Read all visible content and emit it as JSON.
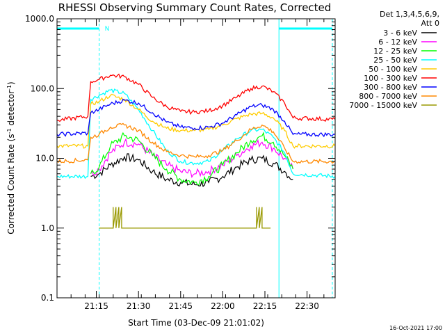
{
  "chart_data": {
    "type": "line",
    "title": "RHESSI Observing Summary Count Rates, Corrected",
    "xlabel": "Start Time (03-Dec-09 21:01:02)",
    "ylabel_main": "Corrected Count Rate (s",
    "ylabel_sup1": "-1",
    "ylabel_mid": " detector",
    "ylabel_sup2": "-1",
    "ylabel_end": ")",
    "y_scale": "log",
    "ylim": [
      0.1,
      1000
    ],
    "y_ticks": [
      {
        "value": 1000,
        "label": "1000.0"
      },
      {
        "value": 100,
        "label": "100.0"
      },
      {
        "value": 10,
        "label": "10.0"
      },
      {
        "value": 1,
        "label": "1.0"
      },
      {
        "value": 0.1,
        "label": "0.1"
      }
    ],
    "xlim": [
      "21:01",
      "22:40"
    ],
    "x_ticks": [
      "21:15",
      "21:30",
      "21:45",
      "22:00",
      "22:15",
      "22:30"
    ],
    "grid": false,
    "legend_position": "right",
    "legend_header": [
      "Det 1,3,4,5,6,9,",
      "Att 0"
    ],
    "series": [
      {
        "name": "3 - 6 keV",
        "color": "#000000",
        "values": [
          [
            "21:13",
            5.5
          ],
          [
            "21:16",
            6
          ],
          [
            "21:20",
            8
          ],
          [
            "21:25",
            10.5
          ],
          [
            "21:30",
            9.5
          ],
          [
            "21:35",
            6.5
          ],
          [
            "21:40",
            5
          ],
          [
            "21:45",
            4.5
          ],
          [
            "21:50",
            4.2
          ],
          [
            "21:55",
            4.5
          ],
          [
            "22:00",
            5.5
          ],
          [
            "22:05",
            7.5
          ],
          [
            "22:10",
            9.5
          ],
          [
            "22:14",
            10
          ],
          [
            "22:18",
            8.5
          ],
          [
            "22:22",
            6.5
          ],
          [
            "22:25",
            5
          ]
        ]
      },
      {
        "name": "6 - 12 keV",
        "color": "#ff00ff",
        "values": [
          [
            "21:13",
            6
          ],
          [
            "21:16",
            7
          ],
          [
            "21:20",
            12
          ],
          [
            "21:25",
            17
          ],
          [
            "21:30",
            16
          ],
          [
            "21:35",
            11
          ],
          [
            "21:40",
            8
          ],
          [
            "21:45",
            6.5
          ],
          [
            "21:50",
            6
          ],
          [
            "21:55",
            6.5
          ],
          [
            "22:00",
            8
          ],
          [
            "22:05",
            11
          ],
          [
            "22:10",
            15
          ],
          [
            "22:14",
            17
          ],
          [
            "22:18",
            14
          ],
          [
            "22:22",
            10
          ],
          [
            "22:25",
            7
          ]
        ]
      },
      {
        "name": "12 - 25 keV",
        "color": "#00ff00",
        "values": [
          [
            "21:13",
            6
          ],
          [
            "21:16",
            7.5
          ],
          [
            "21:20",
            15
          ],
          [
            "21:25",
            21
          ],
          [
            "21:30",
            18
          ],
          [
            "21:35",
            11
          ],
          [
            "21:40",
            7
          ],
          [
            "21:45",
            5
          ],
          [
            "21:50",
            4.5
          ],
          [
            "21:55",
            5.5
          ],
          [
            "22:00",
            8
          ],
          [
            "22:05",
            12
          ],
          [
            "22:10",
            18
          ],
          [
            "22:14",
            21
          ],
          [
            "22:18",
            17
          ],
          [
            "22:22",
            11
          ],
          [
            "22:25",
            7
          ]
        ]
      },
      {
        "name": "25 - 50 keV",
        "color": "#00ffff",
        "values": [
          [
            "21:01",
            5.5
          ],
          [
            "21:12",
            5.5
          ],
          [
            "21:13",
            70
          ],
          [
            "21:16",
            80
          ],
          [
            "21:20",
            95
          ],
          [
            "21:25",
            85
          ],
          [
            "21:30",
            50
          ],
          [
            "21:35",
            25
          ],
          [
            "21:40",
            13
          ],
          [
            "21:45",
            9
          ],
          [
            "21:50",
            8.5
          ],
          [
            "21:55",
            9
          ],
          [
            "22:00",
            13
          ],
          [
            "22:05",
            19
          ],
          [
            "22:10",
            25
          ],
          [
            "22:14",
            26
          ],
          [
            "22:18",
            20
          ],
          [
            "22:22",
            12
          ],
          [
            "22:25",
            6
          ],
          [
            "22:40",
            5.5
          ]
        ]
      },
      {
        "name": "50 - 100 keV",
        "color": "#ffcc00",
        "values": [
          [
            "21:01",
            15
          ],
          [
            "21:12",
            15
          ],
          [
            "21:13",
            60
          ],
          [
            "21:16",
            65
          ],
          [
            "21:20",
            80
          ],
          [
            "21:25",
            70
          ],
          [
            "21:30",
            50
          ],
          [
            "21:35",
            34
          ],
          [
            "21:40",
            27
          ],
          [
            "21:45",
            25
          ],
          [
            "21:50",
            25
          ],
          [
            "21:55",
            26
          ],
          [
            "22:00",
            30
          ],
          [
            "22:05",
            37
          ],
          [
            "22:10",
            43
          ],
          [
            "22:14",
            44
          ],
          [
            "22:18",
            38
          ],
          [
            "22:22",
            25
          ],
          [
            "22:25",
            15
          ],
          [
            "22:40",
            15
          ]
        ]
      },
      {
        "name": "100 - 300 keV",
        "color": "#ff0000",
        "values": [
          [
            "21:01",
            35
          ],
          [
            "21:12",
            40
          ],
          [
            "21:13",
            125
          ],
          [
            "21:16",
            135
          ],
          [
            "21:20",
            155
          ],
          [
            "21:25",
            148
          ],
          [
            "21:30",
            115
          ],
          [
            "21:35",
            75
          ],
          [
            "21:40",
            55
          ],
          [
            "21:45",
            47
          ],
          [
            "21:50",
            46
          ],
          [
            "21:55",
            48
          ],
          [
            "22:00",
            57
          ],
          [
            "22:05",
            75
          ],
          [
            "22:10",
            100
          ],
          [
            "22:14",
            108
          ],
          [
            "22:18",
            90
          ],
          [
            "22:22",
            62
          ],
          [
            "22:25",
            38
          ],
          [
            "22:40",
            36
          ]
        ]
      },
      {
        "name": "300 - 800 keV",
        "color": "#0000ff",
        "values": [
          [
            "21:01",
            22
          ],
          [
            "21:12",
            23
          ],
          [
            "21:13",
            45
          ],
          [
            "21:16",
            50
          ],
          [
            "21:20",
            60
          ],
          [
            "21:25",
            68
          ],
          [
            "21:30",
            62
          ],
          [
            "21:35",
            45
          ],
          [
            "21:40",
            33
          ],
          [
            "21:45",
            28
          ],
          [
            "21:50",
            27
          ],
          [
            "21:55",
            28
          ],
          [
            "22:00",
            32
          ],
          [
            "22:05",
            42
          ],
          [
            "22:10",
            55
          ],
          [
            "22:14",
            58
          ],
          [
            "22:18",
            50
          ],
          [
            "22:22",
            34
          ],
          [
            "22:25",
            22
          ],
          [
            "22:40",
            22
          ]
        ]
      },
      {
        "name": "800 - 7000 keV",
        "color": "#ff8800",
        "values": [
          [
            "21:01",
            9
          ],
          [
            "21:12",
            9.5
          ],
          [
            "21:13",
            20
          ],
          [
            "21:16",
            22
          ],
          [
            "21:20",
            28
          ],
          [
            "21:25",
            30
          ],
          [
            "21:30",
            25
          ],
          [
            "21:35",
            17
          ],
          [
            "21:40",
            12.5
          ],
          [
            "21:45",
            11
          ],
          [
            "21:50",
            10.5
          ],
          [
            "21:55",
            11
          ],
          [
            "22:00",
            13
          ],
          [
            "22:05",
            18
          ],
          [
            "22:10",
            26
          ],
          [
            "22:14",
            30
          ],
          [
            "22:18",
            24
          ],
          [
            "22:22",
            14
          ],
          [
            "22:25",
            9
          ],
          [
            "22:40",
            9
          ]
        ]
      },
      {
        "name": "7000 - 15000 keV",
        "color": "#999900",
        "values": [
          [
            "21:16",
            1
          ],
          [
            "21:21",
            1
          ],
          [
            "21:21",
            2
          ],
          [
            "21:21",
            1
          ],
          [
            "21:22",
            2
          ],
          [
            "21:22",
            1
          ],
          [
            "21:23",
            2
          ],
          [
            "21:23",
            1
          ],
          [
            "21:24",
            2
          ],
          [
            "21:24",
            1
          ],
          [
            "21:29",
            1
          ],
          [
            "22:08",
            1
          ],
          [
            "22:12",
            1
          ],
          [
            "22:12",
            2
          ],
          [
            "22:12",
            1
          ],
          [
            "22:13",
            2
          ],
          [
            "22:13",
            1
          ],
          [
            "22:14",
            2
          ],
          [
            "22:14",
            1
          ],
          [
            "22:17",
            1
          ]
        ]
      }
    ],
    "markers": {
      "color": "#00ffff",
      "solid_lines": [
        "21:01",
        "22:20"
      ],
      "dashed_lines": [
        "21:16",
        "22:39"
      ],
      "bars": [
        [
          "21:01",
          "21:16"
        ],
        [
          "22:20",
          "22:39"
        ]
      ],
      "top_flag_label": "N"
    }
  },
  "footer": {
    "timestamp": "16-Oct-2021 17:00"
  }
}
